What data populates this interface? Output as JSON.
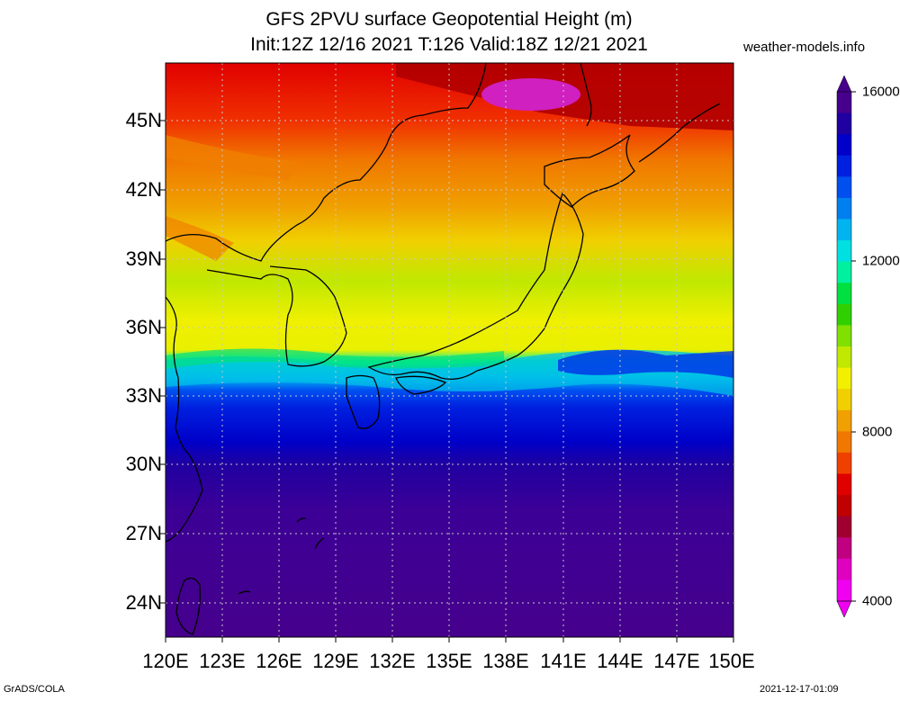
{
  "title_line1": "GFS 2PVU surface Geopotential Height (m)",
  "title_line2": "Init:12Z 12/16 2021 T:126 Valid:18Z 12/21 2021",
  "site": "weather-models.info",
  "map": {
    "lat_labels": [
      "45N",
      "42N",
      "39N",
      "36N",
      "33N",
      "30N",
      "27N",
      "24N"
    ],
    "lon_labels": [
      "120E",
      "123E",
      "126E",
      "129E",
      "132E",
      "135E",
      "138E",
      "141E",
      "144E",
      "147E",
      "150E"
    ],
    "lat_range": [
      22.5,
      47.0
    ],
    "lon_range": [
      120,
      150
    ]
  },
  "colorbar": {
    "labels": [
      "16000",
      "12000",
      "8000",
      "4000"
    ],
    "colors_top_to_bottom": [
      "#46008c",
      "#2000a0",
      "#0000c8",
      "#0020e0",
      "#0050f0",
      "#0080f0",
      "#00b4f0",
      "#00e0e0",
      "#00f0a0",
      "#00e040",
      "#30d000",
      "#80e000",
      "#c0e800",
      "#f0f000",
      "#f0d000",
      "#f0a000",
      "#f07800",
      "#f04000",
      "#e00000",
      "#c00000",
      "#a00030",
      "#c00080",
      "#e000c0",
      "#f000f0"
    ],
    "arrow_top_color": "#46008c",
    "arrow_bottom_color": "#f000f0"
  },
  "footer_left": "GrADS/COLA",
  "footer_right": "2021-12-17-01:09"
}
